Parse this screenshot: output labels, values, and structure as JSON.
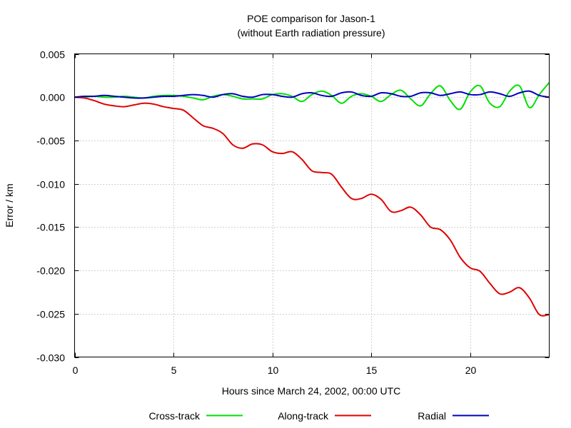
{
  "chart_data": {
    "type": "line",
    "title": "POE comparison for Jason-1",
    "subtitle": "(without Earth radiation pressure)",
    "xlabel": "Hours since March 24, 2002, 00:00 UTC",
    "ylabel": "Error / km",
    "xlim": [
      0,
      24
    ],
    "ylim": [
      -0.03,
      0.005
    ],
    "x_ticks": [
      0,
      5,
      10,
      15,
      20
    ],
    "x_tick_labels": [
      "0",
      "5",
      "10",
      "15",
      "20"
    ],
    "y_ticks": [
      0.005,
      0.0,
      -0.005,
      -0.01,
      -0.015,
      -0.02,
      -0.025,
      -0.03
    ],
    "y_tick_labels": [
      "0.005",
      "0.000",
      "-0.005",
      "-0.010",
      "-0.015",
      "-0.020",
      "-0.025",
      "-0.030"
    ],
    "grid": true,
    "legend_position": "bottom",
    "series": [
      {
        "name": "Cross-track",
        "color": "#00e000",
        "x": [
          0,
          0.5,
          1,
          1.5,
          2,
          2.5,
          3,
          3.5,
          4,
          4.5,
          5,
          5.5,
          6,
          6.5,
          7,
          7.5,
          8,
          8.5,
          9,
          9.5,
          10,
          10.5,
          11,
          11.5,
          12,
          12.5,
          13,
          13.5,
          14,
          14.5,
          15,
          15.5,
          16,
          16.5,
          17,
          17.5,
          18,
          18.5,
          19,
          19.5,
          20,
          20.5,
          21,
          21.5,
          22,
          22.5,
          23,
          23.5,
          24
        ],
        "y": [
          0,
          0,
          0.0001,
          0,
          0,
          0.0001,
          0,
          -0.0001,
          0.0001,
          0.0002,
          0.0002,
          0.0001,
          -0.0001,
          -0.0003,
          0.0001,
          0.0003,
          0.0001,
          -0.0002,
          -0.0002,
          -0.0002,
          0.0003,
          0.0004,
          0.0001,
          -0.0005,
          0.0003,
          0.0007,
          0.0002,
          -0.0007,
          0.0001,
          0.0004,
          0.0001,
          -0.0005,
          0.0003,
          0.0008,
          -0.0002,
          -0.001,
          0.0004,
          0.0013,
          -0.0004,
          -0.0014,
          0.0006,
          0.0013,
          -0.0007,
          -0.0011,
          0.0007,
          0.0013,
          -0.0012,
          0.0003,
          0.0017
        ]
      },
      {
        "name": "Along-track",
        "color": "#e00000",
        "x": [
          0,
          0.5,
          1,
          1.5,
          2,
          2.5,
          3,
          3.5,
          4,
          4.5,
          5,
          5.5,
          6,
          6.5,
          7,
          7.5,
          8,
          8.5,
          9,
          9.5,
          10,
          10.5,
          11,
          11.5,
          12,
          12.5,
          13,
          13.5,
          14,
          14.5,
          15,
          15.5,
          16,
          16.5,
          17,
          17.5,
          18,
          18.5,
          19,
          19.5,
          20,
          20.5,
          21,
          21.5,
          22,
          22.5,
          23,
          23.5,
          24
        ],
        "y": [
          0,
          -0.0001,
          -0.0004,
          -0.0008,
          -0.001,
          -0.0011,
          -0.0009,
          -0.0007,
          -0.0008,
          -0.0011,
          -0.0013,
          -0.0015,
          -0.0024,
          -0.0033,
          -0.0036,
          -0.0042,
          -0.0055,
          -0.0059,
          -0.0054,
          -0.0055,
          -0.0063,
          -0.0065,
          -0.0063,
          -0.0072,
          -0.0085,
          -0.0087,
          -0.0089,
          -0.0104,
          -0.0117,
          -0.0117,
          -0.0112,
          -0.0118,
          -0.0132,
          -0.0131,
          -0.0127,
          -0.0136,
          -0.015,
          -0.0153,
          -0.0165,
          -0.0185,
          -0.0197,
          -0.0201,
          -0.0215,
          -0.0227,
          -0.0225,
          -0.022,
          -0.0232,
          -0.0251,
          -0.0251
        ]
      },
      {
        "name": "Radial",
        "color": "#0000c0",
        "x": [
          0,
          0.5,
          1,
          1.5,
          2,
          2.5,
          3,
          3.5,
          4,
          4.5,
          5,
          5.5,
          6,
          6.5,
          7,
          7.5,
          8,
          8.5,
          9,
          9.5,
          10,
          10.5,
          11,
          11.5,
          12,
          12.5,
          13,
          13.5,
          14,
          14.5,
          15,
          15.5,
          16,
          16.5,
          17,
          17.5,
          18,
          18.5,
          19,
          19.5,
          20,
          20.5,
          21,
          21.5,
          22,
          22.5,
          23,
          23.5,
          24
        ],
        "y": [
          0,
          0.0001,
          0.0001,
          0.0002,
          0.0001,
          0,
          -0.0001,
          -0.0001,
          0,
          0.0001,
          0.0001,
          0.0002,
          0.0003,
          0.0002,
          0,
          0.0003,
          0.0004,
          0.0001,
          0,
          0.0003,
          0.0003,
          0.0001,
          0,
          0.0004,
          0.0005,
          0.0002,
          0.0001,
          0.0005,
          0.0006,
          0.0002,
          0.0001,
          0.0005,
          0.0004,
          0.0001,
          0.0001,
          0.0005,
          0.0005,
          0.0002,
          0.0004,
          0.0006,
          0.0003,
          0.0003,
          0.0006,
          0.0004,
          0.0001,
          0.0005,
          0.0007,
          0.0002,
          0
        ]
      }
    ]
  }
}
